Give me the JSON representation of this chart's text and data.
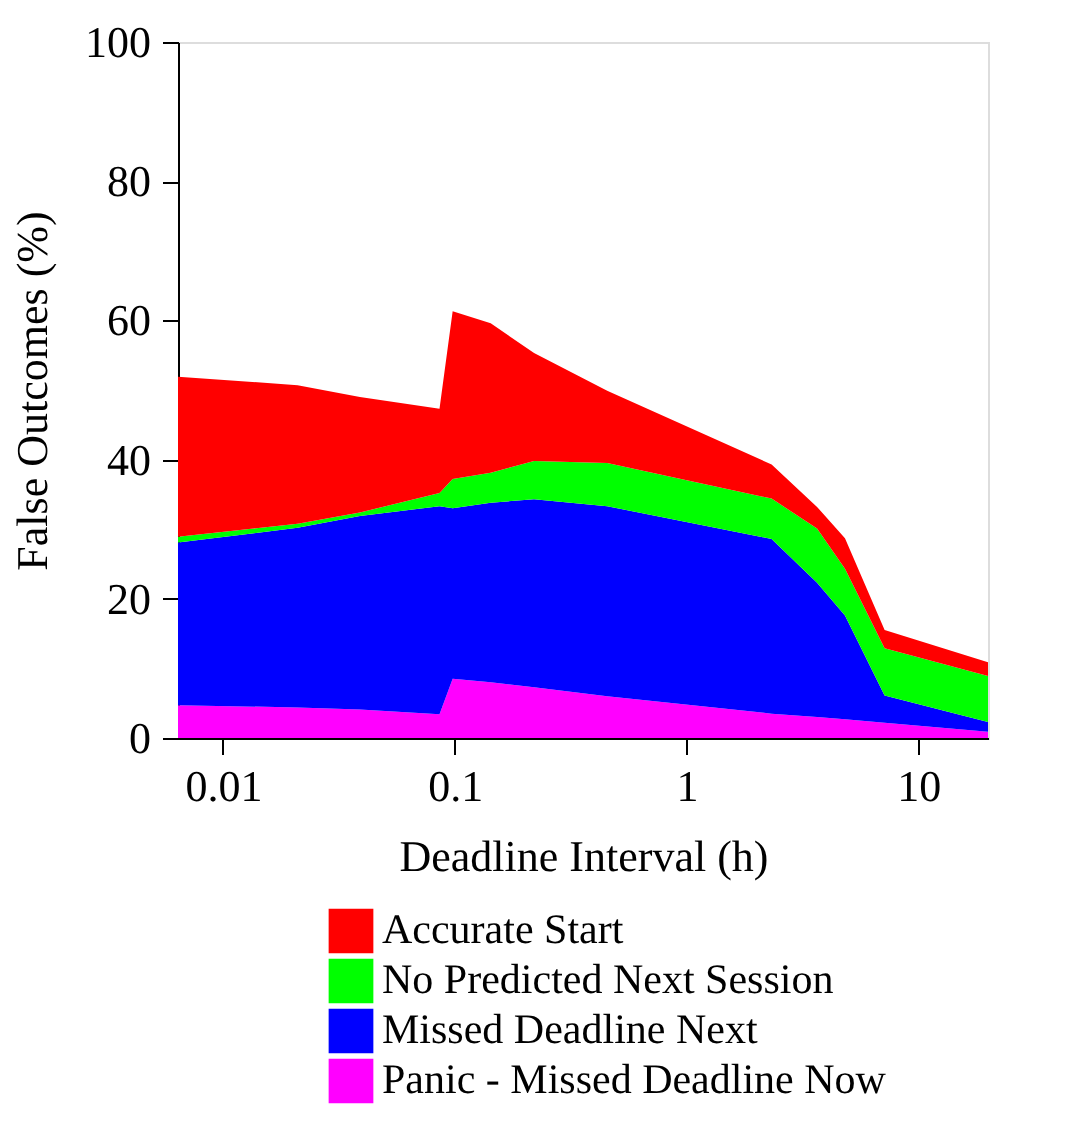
{
  "chart_data": {
    "type": "area",
    "stacked": true,
    "xlabel": "Deadline Interval (h)",
    "ylabel": "False Outcomes (%)",
    "log": "x",
    "x": [
      0.0064,
      0.021,
      0.039,
      0.086,
      0.098,
      0.143,
      0.22,
      0.455,
      2.33,
      3.66,
      4.83,
      7.16,
      20
    ],
    "xlim": [
      0.0064,
      20
    ],
    "xticks": [
      0.01,
      0.1,
      1,
      10
    ],
    "ylim": [
      0,
      100
    ],
    "yticks": [
      0,
      20,
      40,
      60,
      80,
      100
    ],
    "grid": false,
    "legend": "bottom right",
    "series": [
      {
        "name": "Panic - Missed Deadline Now",
        "color": "#ff00ff",
        "values": [
          4.7,
          4.4,
          4.1,
          3.4,
          8.5,
          8.0,
          7.3,
          6.0,
          3.5,
          3.0,
          2.7,
          2.2,
          0.9
        ]
      },
      {
        "name": "Missed Deadline Next",
        "color": "#0000ff",
        "values": [
          23.4,
          25.8,
          27.8,
          29.9,
          24.5,
          25.8,
          27.0,
          27.3,
          25.1,
          19.3,
          14.9,
          3.9,
          1.4
        ]
      },
      {
        "name": "No Predicted Next Session",
        "color": "#00ff00",
        "values": [
          0.8,
          0.6,
          0.5,
          1.9,
          4.2,
          4.3,
          5.5,
          6.2,
          5.8,
          7.8,
          6.7,
          6.8,
          6.6
        ]
      },
      {
        "name": "Accurate Start",
        "color": "#ff0000",
        "values": [
          23.0,
          19.9,
          16.6,
          12.1,
          24.1,
          21.5,
          15.5,
          10.4,
          4.9,
          3.1,
          4.4,
          2.6,
          2.0
        ]
      }
    ]
  }
}
